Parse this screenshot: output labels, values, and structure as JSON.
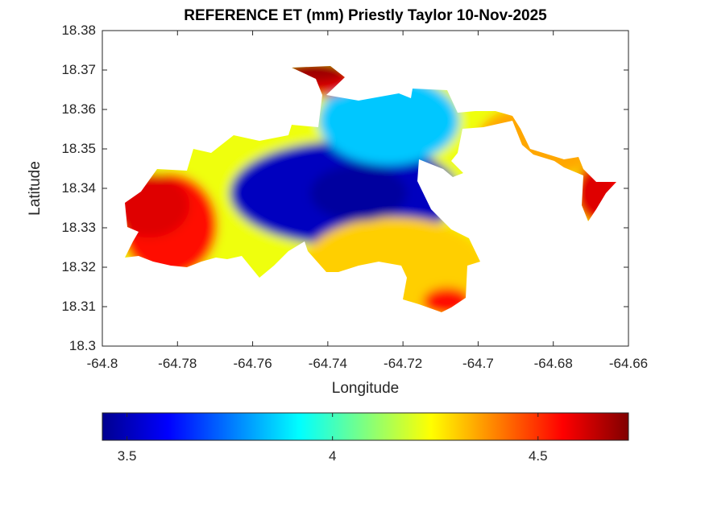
{
  "chart_data": {
    "type": "heatmap",
    "title": "REFERENCE ET (mm) Priestly Taylor 10-Nov-2025",
    "xlabel": "Longitude",
    "ylabel": "Latitude",
    "xlim": [
      -64.8,
      -64.66
    ],
    "ylim": [
      18.3,
      18.38
    ],
    "xticks": [
      "-64.8",
      "-64.78",
      "-64.76",
      "-64.74",
      "-64.72",
      "-64.7",
      "-64.68",
      "-64.66"
    ],
    "yticks": [
      "18.3",
      "18.31",
      "18.32",
      "18.33",
      "18.34",
      "18.35",
      "18.36",
      "18.37",
      "18.38"
    ],
    "colormap": "jet",
    "colorbar": {
      "range": [
        3.44,
        4.72
      ],
      "ticks": [
        "3.5",
        "4",
        "4.5"
      ],
      "placement": "bottom"
    },
    "regions": [
      {
        "name": "west-interior",
        "value": 4.22
      },
      {
        "name": "western-tip",
        "value": 4.55
      },
      {
        "name": "central-blue-core",
        "value": 3.52
      },
      {
        "name": "northern-lobe",
        "value": 3.85
      },
      {
        "name": "southern-peninsula",
        "value": 4.3
      },
      {
        "name": "northwest-point",
        "value": 4.6
      },
      {
        "name": "eastern-strip",
        "value": 4.35
      },
      {
        "name": "eastern-end",
        "value": 4.55
      }
    ]
  }
}
